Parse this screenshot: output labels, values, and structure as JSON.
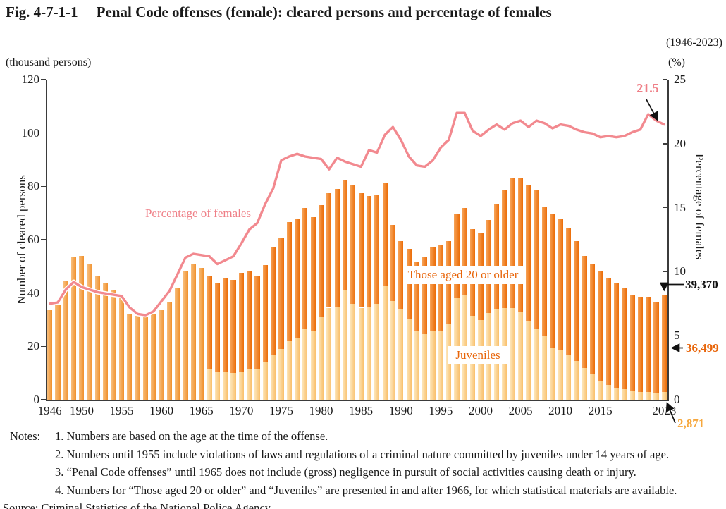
{
  "header": {
    "fig_no": "Fig. 4-7-1-1",
    "title": "Penal Code offenses (female): cleared persons and percentage of females",
    "period": "(1946-2023)"
  },
  "left_axis": {
    "unit": "(thousand persons)",
    "title": "Number of cleared persons",
    "ticks": [
      0,
      20,
      40,
      60,
      80,
      100,
      120
    ],
    "max": 120
  },
  "right_axis": {
    "unit": "(%)",
    "title": "Percentage of females",
    "ticks": [
      0,
      5,
      10,
      15,
      20,
      25
    ],
    "max": 25
  },
  "x_axis": {
    "tick_years": [
      1946,
      1950,
      1955,
      1960,
      1965,
      1970,
      1975,
      1980,
      1985,
      1990,
      1995,
      2000,
      2005,
      2010,
      2015,
      2023
    ]
  },
  "series_labels": {
    "percentage": "Percentage of females",
    "adults": "Those aged 20 or older",
    "juveniles": "Juveniles"
  },
  "annotations": {
    "pct_final": "21.5",
    "total_final": "39,370",
    "adults_final": "36,499",
    "juveniles_final": "2,871"
  },
  "notes": {
    "label": "Notes:",
    "items": [
      "1. Numbers are based on the age at the time of the offense.",
      "2. Numbers until 1955 include violations of laws and regulations of a criminal nature committed by juveniles under 14 years of age.",
      "3. “Penal Code offenses” until 1965 does not include (gross) negligence in pursuit of social activities causing death or injury.",
      "4. Numbers for “Those aged 20 or older” and “Juveniles” are presented in and after 1966, for which statistical materials are available."
    ],
    "source": "Source: Criminal Statistics of the National Police Agency"
  },
  "colors": {
    "line_pink": "#F2898F",
    "pink_text": "#EF7F87",
    "orange_text": "#E8650A",
    "amber_text": "#F6A73C",
    "total_bar": [
      "#F8BE7C",
      "#F0912D"
    ],
    "adult_bar": [
      "#F7A358",
      "#EB6D08"
    ],
    "juvenile_bar": [
      "#FDE6BA",
      "#F9C06C"
    ],
    "axis": "#3b3b3b"
  },
  "chart_data": {
    "type": "stacked-bar+line",
    "title": "Penal Code offenses (female): cleared persons and percentage of females (1946-2023)",
    "ylabel_left": "Number of cleared persons (thousand persons)",
    "ylabel_right": "Percentage of females (%)",
    "ylim_left": [
      0,
      120
    ],
    "ylim_right": [
      0,
      25
    ],
    "legend_position": "inline-labels",
    "grid": false,
    "years": [
      1946,
      1947,
      1948,
      1949,
      1950,
      1951,
      1952,
      1953,
      1954,
      1955,
      1956,
      1957,
      1958,
      1959,
      1960,
      1961,
      1962,
      1963,
      1964,
      1965,
      1966,
      1967,
      1968,
      1969,
      1970,
      1971,
      1972,
      1973,
      1974,
      1975,
      1976,
      1977,
      1978,
      1979,
      1980,
      1981,
      1982,
      1983,
      1984,
      1985,
      1986,
      1987,
      1988,
      1989,
      1990,
      1991,
      1992,
      1993,
      1994,
      1995,
      1996,
      1997,
      1998,
      1999,
      2000,
      2001,
      2002,
      2003,
      2004,
      2005,
      2006,
      2007,
      2008,
      2009,
      2010,
      2011,
      2012,
      2013,
      2014,
      2015,
      2016,
      2017,
      2018,
      2019,
      2020,
      2021,
      2022,
      2023
    ],
    "totals_thousand": [
      33.5,
      35.5,
      44.5,
      53.5,
      54,
      51,
      46.5,
      43.5,
      41,
      39.5,
      32,
      31.5,
      32,
      32,
      33.5,
      36.5,
      42,
      48,
      51,
      49.5,
      46.5,
      44,
      45.5,
      45,
      47.5,
      48,
      46.5,
      50.5,
      57.5,
      60.5,
      66.5,
      68,
      72,
      68.5,
      73,
      77.5,
      79,
      82.5,
      80.5,
      77.5,
      76.5,
      77,
      81.5,
      65.5,
      59.5,
      56.5,
      51.5,
      53.5,
      57.5,
      58,
      59.5,
      69.5,
      72,
      64,
      62.5,
      67.5,
      73.5,
      78.5,
      83,
      83,
      80.5,
      78.5,
      72.5,
      69.5,
      68,
      64.5,
      59.5,
      54,
      51,
      48.5,
      45.5,
      43.5,
      42,
      39.5,
      38.5,
      38.5,
      36.5,
      39.37
    ],
    "series": [
      {
        "name": "Juveniles",
        "values": [
          null,
          null,
          null,
          null,
          null,
          null,
          null,
          null,
          null,
          null,
          null,
          null,
          null,
          null,
          null,
          null,
          null,
          null,
          null,
          null,
          11.5,
          10.5,
          10.5,
          10,
          10.5,
          11.5,
          11.5,
          14,
          17,
          19,
          22,
          23,
          26.5,
          26,
          31,
          34.5,
          35,
          41,
          36,
          34.5,
          35,
          36,
          42.5,
          37,
          34,
          30.5,
          26,
          24.5,
          26,
          26,
          28.5,
          38,
          39.5,
          31.5,
          30,
          32.5,
          34,
          34.5,
          34.5,
          33,
          29.5,
          26.5,
          24,
          19.5,
          18.5,
          17,
          14.5,
          12,
          9.5,
          7,
          5.5,
          4.5,
          4,
          3.5,
          3,
          2.9,
          2.5,
          2.871
        ],
        "final_value_persons": 2871
      },
      {
        "name": "Those aged 20 or older",
        "values": [
          null,
          null,
          null,
          null,
          null,
          null,
          null,
          null,
          null,
          null,
          null,
          null,
          null,
          null,
          null,
          null,
          null,
          null,
          null,
          null,
          35,
          33.5,
          35,
          35,
          37,
          36.5,
          35,
          36.5,
          40.5,
          41.5,
          44.5,
          45,
          45.5,
          42.5,
          42,
          43,
          44,
          41.5,
          44.5,
          43,
          41.5,
          41,
          39,
          28.5,
          25.5,
          26,
          25.5,
          29,
          31.5,
          32,
          31,
          31.5,
          32.5,
          32.5,
          32.5,
          35,
          39.5,
          44,
          48.5,
          50,
          51,
          52,
          48.5,
          50,
          49.5,
          47.5,
          45,
          42,
          41.5,
          41.5,
          40,
          39,
          38,
          36,
          35.5,
          35.6,
          34,
          36.499
        ],
        "final_value_persons": 36499
      },
      {
        "name": "Percentage of females (%)",
        "values": [
          7.5,
          7.6,
          8.6,
          9.2,
          8.8,
          8.6,
          8.4,
          8.3,
          8.2,
          8.1,
          7.2,
          6.7,
          6.6,
          6.9,
          7.7,
          8.5,
          9.8,
          11.1,
          11.4,
          11.3,
          11.2,
          10.6,
          10.9,
          11.2,
          12.2,
          13.3,
          13.8,
          15.3,
          16.5,
          18.7,
          19.0,
          19.2,
          19.0,
          18.9,
          18.8,
          18.0,
          18.9,
          18.6,
          18.4,
          18.2,
          19.5,
          19.3,
          20.7,
          21.3,
          20.3,
          19.0,
          18.3,
          18.2,
          18.7,
          19.7,
          20.3,
          22.4,
          22.4,
          21.0,
          20.6,
          21.1,
          21.5,
          21.1,
          21.6,
          21.8,
          21.3,
          21.8,
          21.6,
          21.2,
          21.5,
          21.4,
          21.1,
          20.9,
          20.8,
          20.5,
          20.6,
          20.5,
          20.6,
          20.9,
          21.1,
          22.3,
          21.8,
          21.5
        ],
        "final_value_pct": 21.5
      }
    ],
    "note": "Bars before 1966 show the total only; from 1966 bars are stacked Juveniles + Those aged 20 or older. Final year 2023: total 39,370 persons."
  }
}
